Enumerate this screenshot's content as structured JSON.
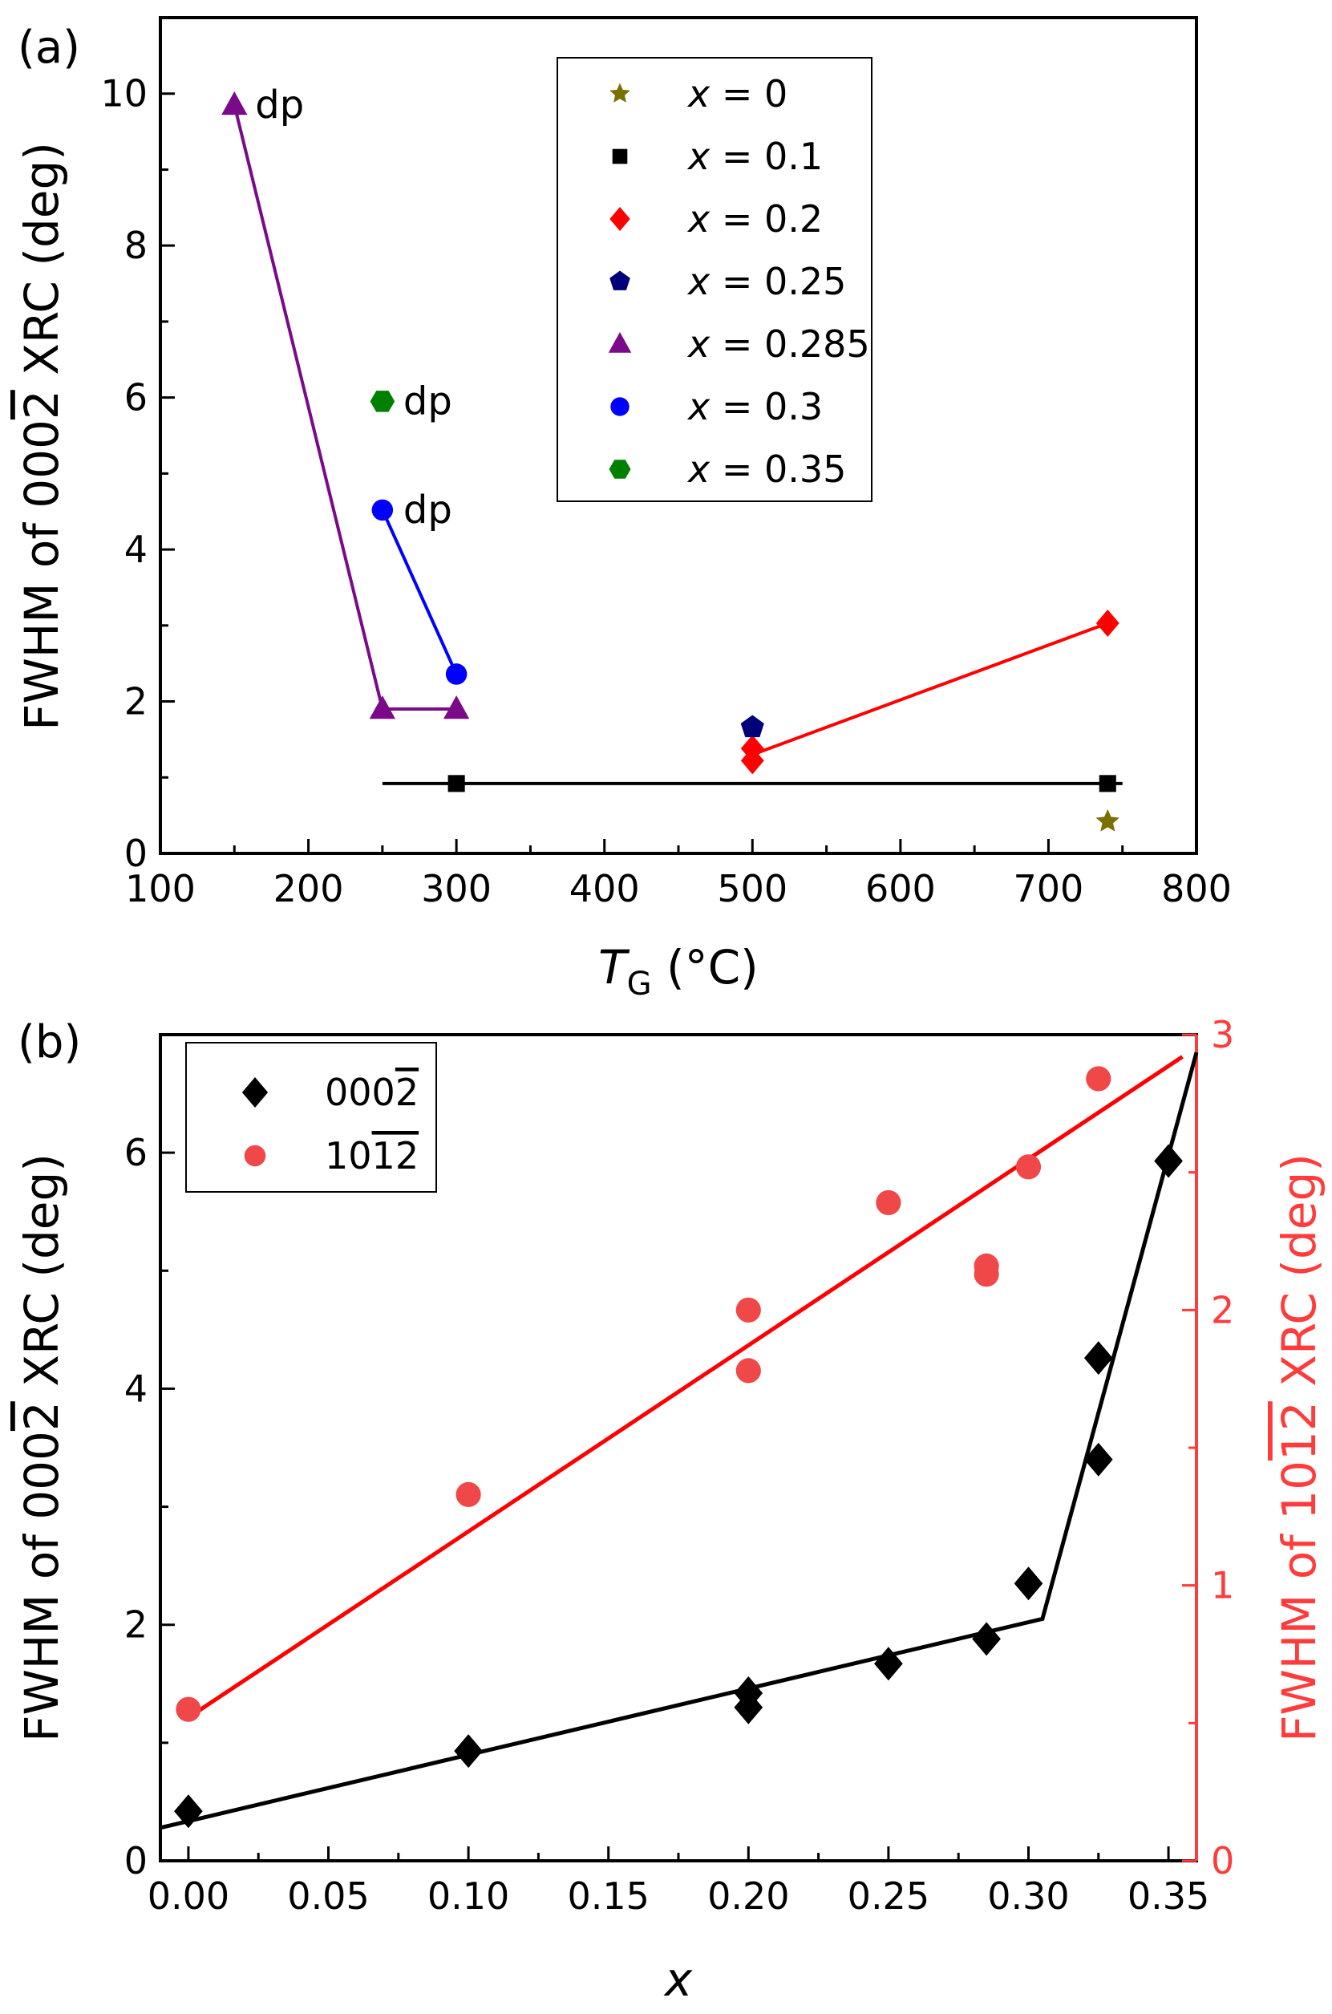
{
  "chart_data": [
    {
      "type": "scatter",
      "panel_label": "(a)",
      "xlabel_main": "T",
      "xlabel_sub": "G",
      "xlabel_unit": "(°C)",
      "ylabel": "FWHM of 0002̅ XRC (deg)",
      "xlim": [
        100,
        800
      ],
      "ylim": [
        0,
        11
      ],
      "xticks": [
        100,
        200,
        300,
        400,
        500,
        600,
        700,
        800
      ],
      "yticks": [
        0,
        2,
        4,
        6,
        8,
        10
      ],
      "legend_position": "top-right",
      "series": [
        {
          "name": "x = 0",
          "x_var": "x",
          "rest": " = 0",
          "marker": "star",
          "color": "#7a7000",
          "line": false,
          "points": [
            [
              740,
              0.42
            ]
          ]
        },
        {
          "name": "x = 0.1",
          "x_var": "x",
          "rest": " = 0.1",
          "marker": "square",
          "color": "#000000",
          "line": true,
          "line_x": [
            250,
            750
          ],
          "line_y": [
            0.92,
            0.92
          ],
          "points": [
            [
              300,
              0.92
            ],
            [
              740,
              0.92
            ]
          ]
        },
        {
          "name": "x = 0.2",
          "x_var": "x",
          "rest": " = 0.2",
          "marker": "diamond",
          "color": "#ff0000",
          "line": true,
          "line_x": [
            500,
            740
          ],
          "line_y": [
            1.3,
            3.03
          ],
          "points": [
            [
              500,
              1.22
            ],
            [
              500,
              1.38
            ],
            [
              740,
              3.03
            ]
          ]
        },
        {
          "name": "x = 0.25",
          "x_var": "x",
          "rest": " = 0.25",
          "marker": "pentagon",
          "color": "#00007a",
          "line": false,
          "points": [
            [
              500,
              1.66
            ]
          ]
        },
        {
          "name": "x = 0.285",
          "x_var": "x",
          "rest": " = 0.285",
          "marker": "triangle",
          "color": "#7b0a8a",
          "line": true,
          "line_x": [
            150,
            250,
            300
          ],
          "line_y": [
            9.85,
            1.9,
            1.9
          ],
          "points": [
            [
              150,
              9.85
            ],
            [
              250,
              1.9
            ],
            [
              300,
              1.9
            ]
          ]
        },
        {
          "name": "x = 0.3",
          "x_var": "x",
          "rest": " = 0.3",
          "marker": "circle",
          "color": "#0000ff",
          "line": true,
          "line_x": [
            250,
            300
          ],
          "line_y": [
            4.52,
            2.36
          ],
          "points": [
            [
              250,
              4.52
            ],
            [
              300,
              2.36
            ]
          ]
        },
        {
          "name": "x = 0.35",
          "x_var": "x",
          "rest": " = 0.35",
          "marker": "hexagon",
          "color": "#008000",
          "line": false,
          "points": [
            [
              250,
              5.95
            ]
          ]
        }
      ],
      "annotations": [
        {
          "text": "dp",
          "x": 150,
          "y": 9.85
        },
        {
          "text": "dp",
          "x": 250,
          "y": 5.95
        },
        {
          "text": "dp",
          "x": 250,
          "y": 4.52
        }
      ]
    },
    {
      "type": "scatter",
      "panel_label": "(b)",
      "xlabel": "x",
      "ylabel_left": "FWHM of 0002̅ XRC (deg)",
      "ylabel_right": "FWHM of 101̅2̅ XRC (deg)",
      "xlim": [
        -0.01,
        0.36
      ],
      "ylim_left": [
        0,
        7
      ],
      "ylim_right": [
        0,
        3
      ],
      "xticks": [
        "0.00",
        "0.05",
        "0.10",
        "0.15",
        "0.20",
        "0.25",
        "0.30",
        "0.35"
      ],
      "yticks_left": [
        0,
        2,
        4,
        6
      ],
      "yticks_right": [
        0,
        1,
        2,
        3
      ],
      "right_axis_color": "#ff3b3b",
      "legend_position": "top-left",
      "series": [
        {
          "name": "0002̅",
          "marker": "diamond",
          "color": "#000000",
          "axis": "left",
          "x": [
            0.0,
            0.1,
            0.2,
            0.2,
            0.25,
            0.285,
            0.3,
            0.325,
            0.325,
            0.35
          ],
          "y": [
            0.42,
            0.93,
            1.3,
            1.42,
            1.67,
            1.88,
            2.35,
            4.26,
            3.4,
            5.93
          ],
          "fit_x": [
            -0.01,
            0.305,
            0.36
          ],
          "fit_y": [
            0.28,
            2.05,
            6.85
          ]
        },
        {
          "name": "101̅2̅",
          "marker": "circle",
          "color": "#f04848",
          "axis": "right",
          "x": [
            0.0,
            0.1,
            0.2,
            0.2,
            0.25,
            0.285,
            0.285,
            0.3,
            0.325
          ],
          "y": [
            0.55,
            1.33,
            1.78,
            2.0,
            2.39,
            2.13,
            2.16,
            2.52,
            2.84
          ],
          "fit_x": [
            0.0,
            0.355
          ],
          "fit_y": [
            0.52,
            2.92
          ],
          "fit_color": "#ff0000"
        }
      ]
    }
  ]
}
